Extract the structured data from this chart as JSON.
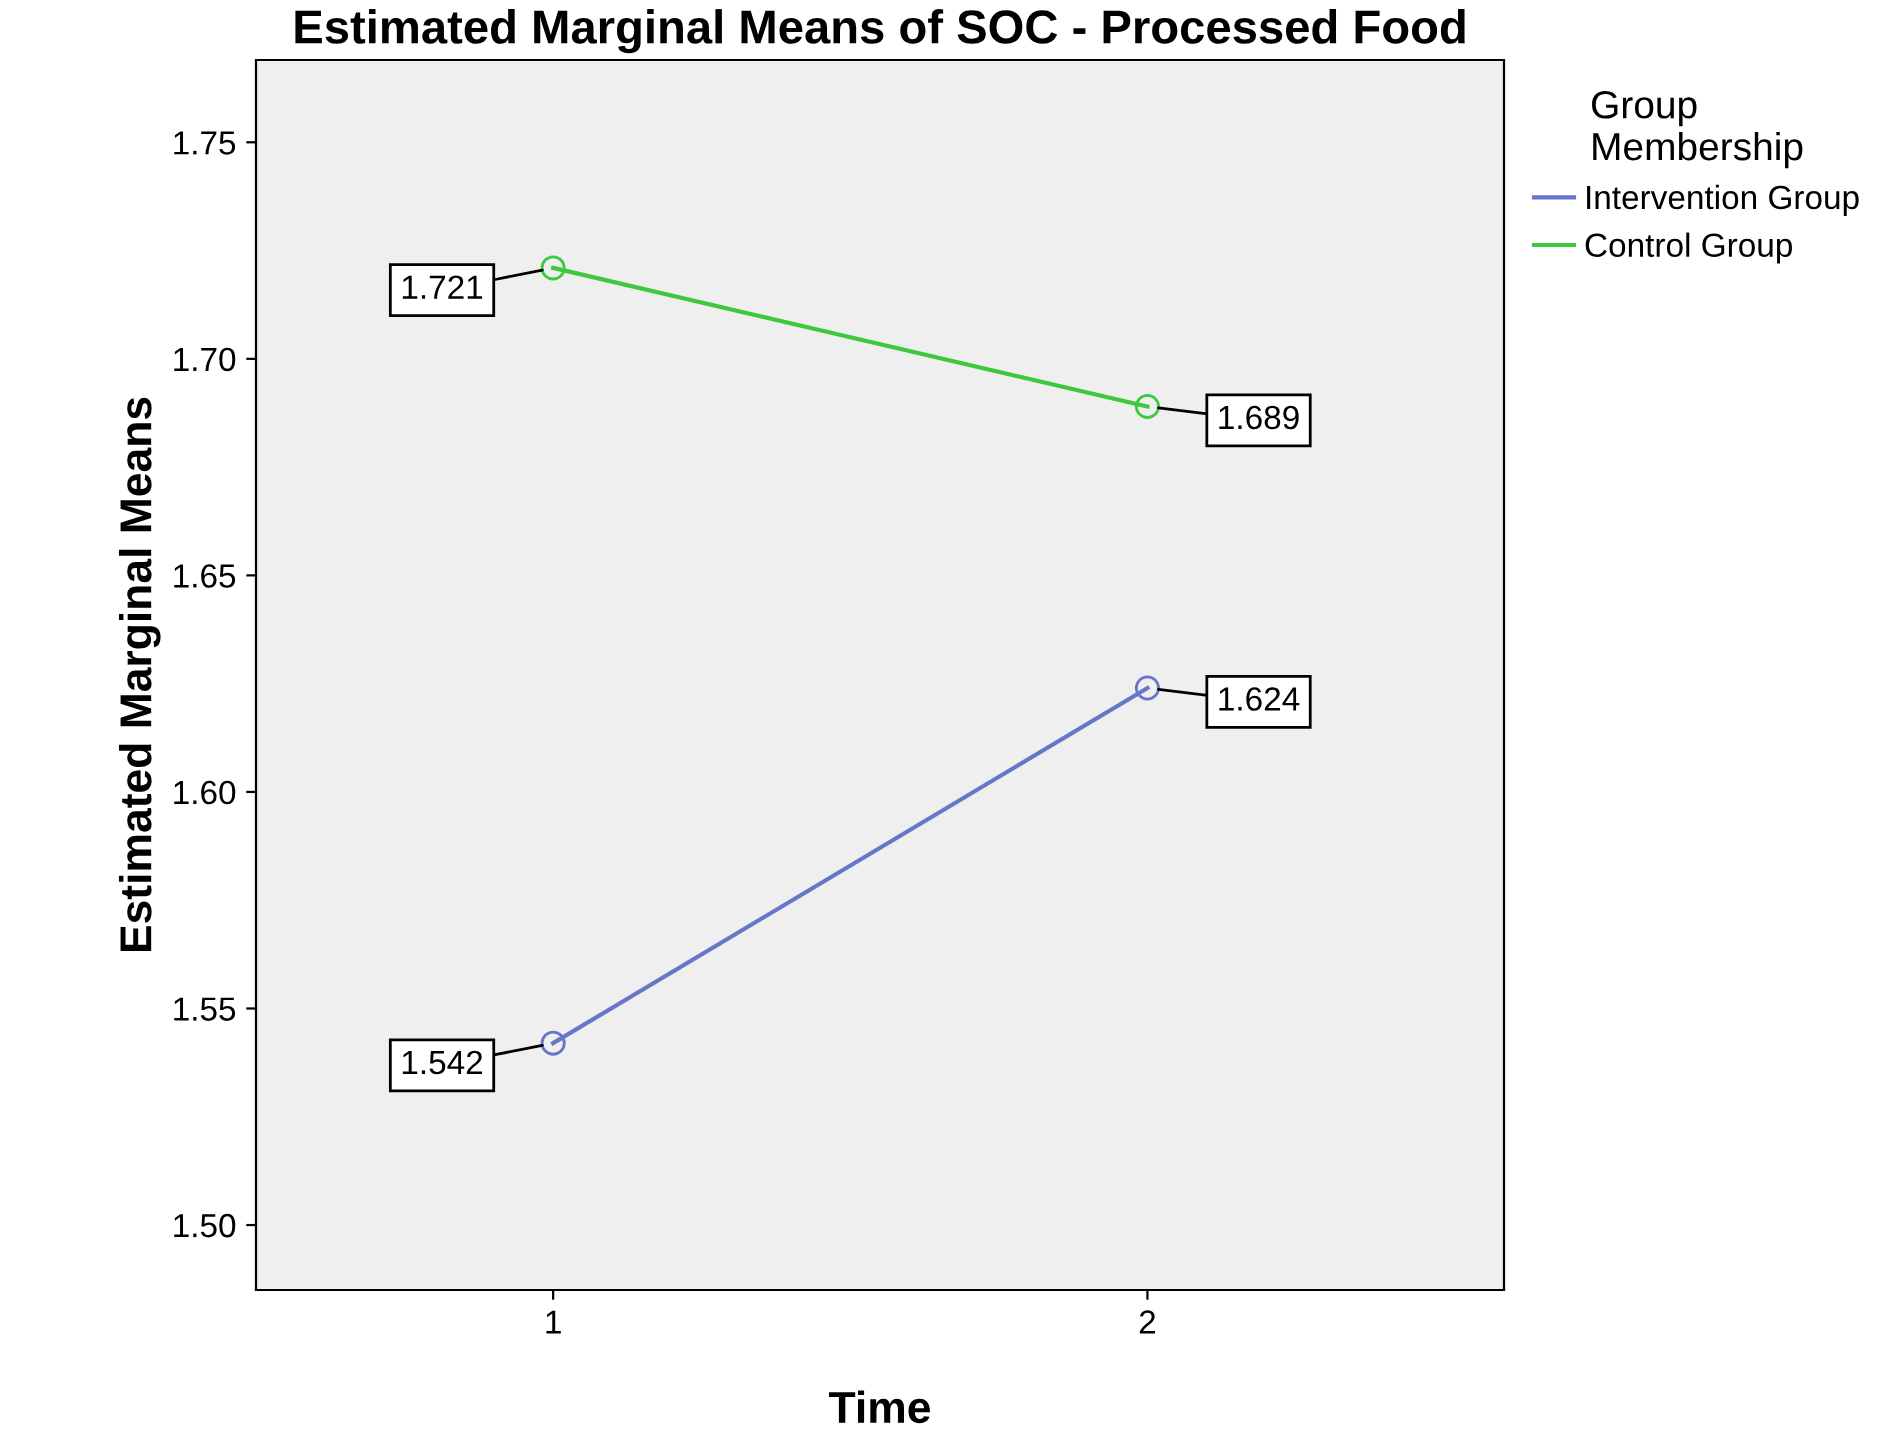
{
  "chart_data": {
    "type": "line",
    "title": "Estimated Marginal Means of SOC - Processed Food",
    "xlabel": "Time",
    "ylabel": "Estimated Marginal Means",
    "legend_title": "Group\nMembership",
    "categories": [
      "1",
      "2"
    ],
    "series": [
      {
        "name": "Intervention Group",
        "color": "#6876c8",
        "values": [
          1.542,
          1.624
        ]
      },
      {
        "name": "Control Group",
        "color": "#3ec83e",
        "values": [
          1.721,
          1.689
        ]
      }
    ],
    "ylim": [
      1.485,
      1.769
    ],
    "yticks": [
      {
        "value": 1.5,
        "label": "1.50"
      },
      1.55,
      {
        "value": 1.6,
        "label": "1.60"
      },
      1.65,
      {
        "value": 1.7,
        "label": "1.70"
      },
      1.75
    ],
    "grid": false,
    "legend": "top right",
    "marker": "circle",
    "line_style": "solid",
    "data_labels": true
  }
}
